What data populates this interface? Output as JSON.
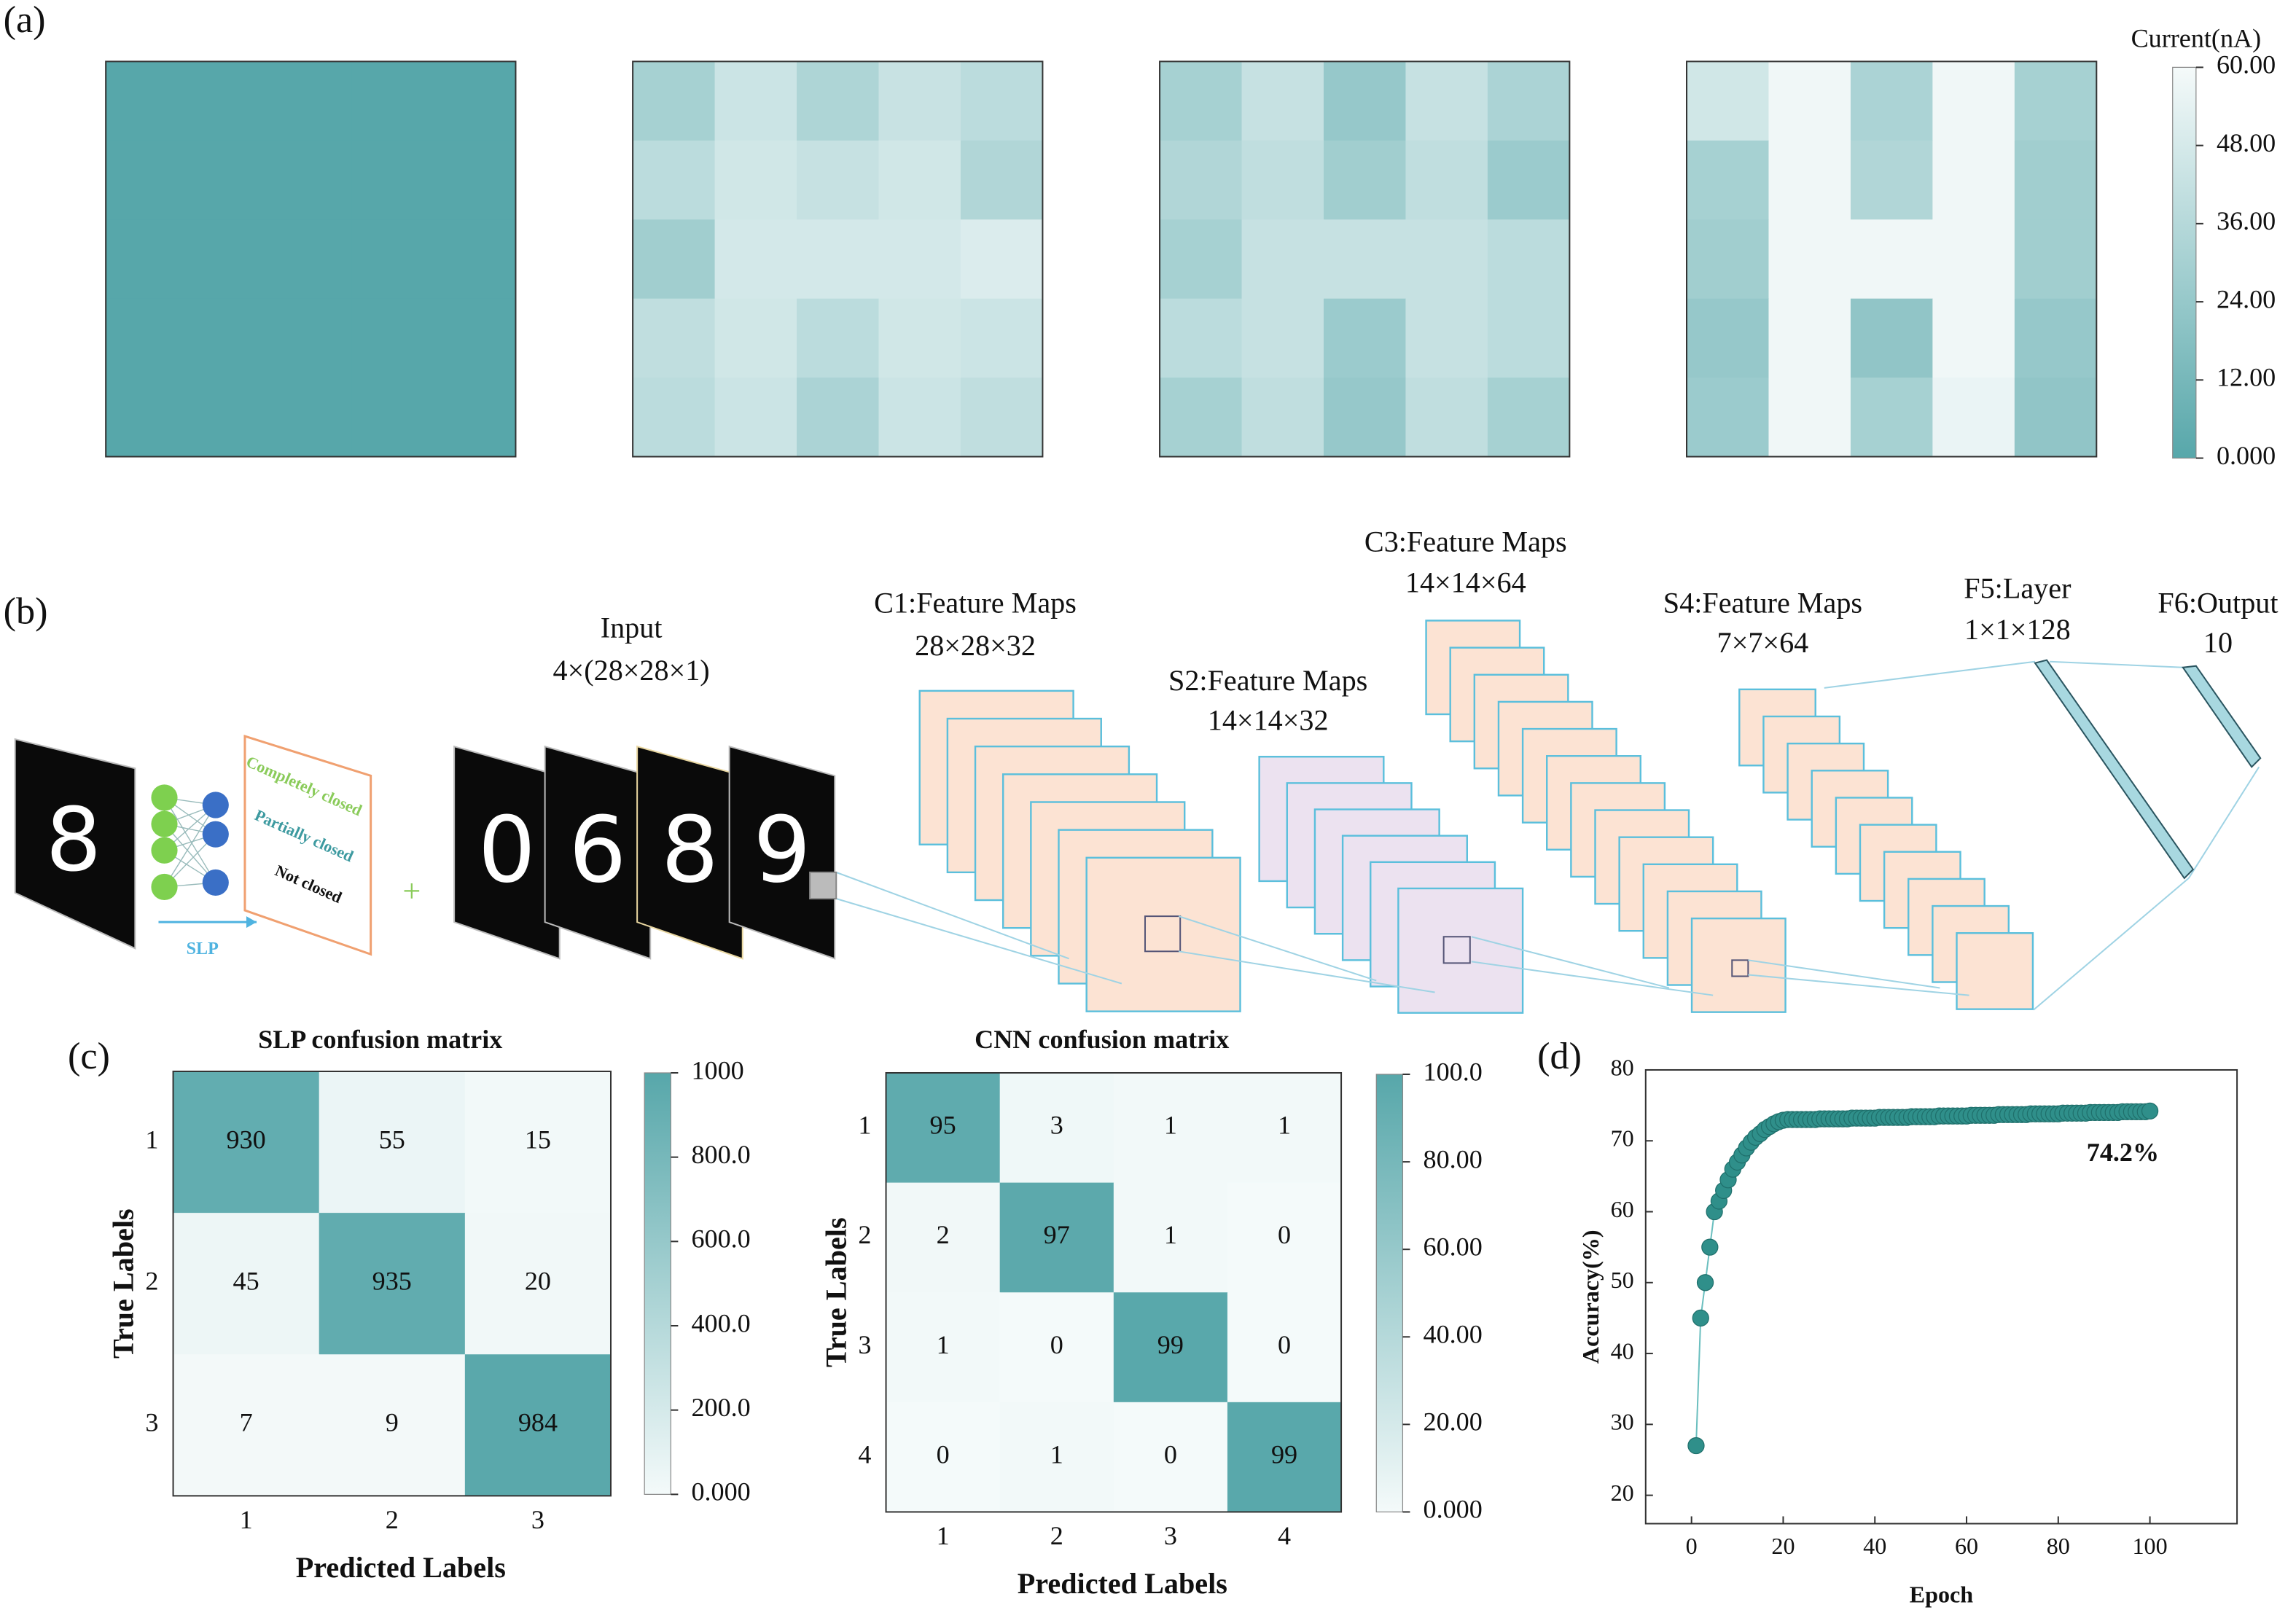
{
  "chart_data": [
    {
      "type": "heatmap",
      "label": "(a)",
      "colorbar_title": "Current(nA)",
      "colormap": [
        "#57a7aa",
        "#f5fafa"
      ],
      "clim": [
        0,
        60
      ],
      "cticks": [
        {
          "value": 0,
          "label": "0.000"
        },
        {
          "value": 12,
          "label": "12.00"
        },
        {
          "value": 24,
          "label": "24.00"
        },
        {
          "value": 36,
          "label": "36.00"
        },
        {
          "value": 48,
          "label": "48.00"
        },
        {
          "value": 60,
          "label": "60.00"
        }
      ],
      "panels": [
        {
          "values": [
            [
              0,
              0,
              0,
              0,
              0
            ],
            [
              0,
              0,
              0,
              0,
              0
            ],
            [
              0,
              0,
              0,
              0,
              0
            ],
            [
              0,
              0,
              0,
              0,
              0
            ],
            [
              0,
              0,
              0,
              0,
              0
            ]
          ]
        },
        {
          "values": [
            [
              30,
              44,
              33,
              43,
              38
            ],
            [
              38,
              46,
              42,
              46,
              34
            ],
            [
              28,
              47,
              47,
              47,
              50
            ],
            [
              40,
              46,
              38,
              46,
              44
            ],
            [
              38,
              44,
              32,
              44,
              40
            ]
          ]
        },
        {
          "values": [
            [
              30,
              42,
              24,
              42,
              32
            ],
            [
              34,
              40,
              28,
              40,
              26
            ],
            [
              30,
              42,
              42,
              42,
              38
            ],
            [
              38,
              42,
              26,
              42,
              38
            ],
            [
              30,
              40,
              24,
              40,
              30
            ]
          ]
        },
        {
          "values": [
            [
              46,
              58,
              32,
              58,
              30
            ],
            [
              30,
              58,
              34,
              58,
              28
            ],
            [
              28,
              58,
              58,
              58,
              28
            ],
            [
              24,
              58,
              22,
              58,
              24
            ],
            [
              26,
              58,
              30,
              56,
              22
            ]
          ]
        }
      ]
    },
    {
      "type": "confusion_matrix",
      "label": "(c)",
      "title": "SLP confusion matrix",
      "xlabel": "Predicted Labels",
      "ylabel": "True Labels",
      "categories": [
        "1",
        "2",
        "3"
      ],
      "values": [
        [
          930,
          55,
          15
        ],
        [
          45,
          935,
          20
        ],
        [
          7,
          9,
          984
        ]
      ],
      "colormap": [
        "#f4fafa",
        "#57a7aa"
      ],
      "clim": [
        0,
        1000
      ],
      "cticks": [
        {
          "value": 0,
          "label": "0.000"
        },
        {
          "value": 200,
          "label": "200.0"
        },
        {
          "value": 400,
          "label": "400.0"
        },
        {
          "value": 600,
          "label": "600.0"
        },
        {
          "value": 800,
          "label": "800.0"
        },
        1000
      ]
    },
    {
      "type": "confusion_matrix",
      "title": "CNN confusion matrix",
      "xlabel": "Predicted Labels",
      "ylabel": "True Labels",
      "categories": [
        "1",
        "2",
        "3",
        "4"
      ],
      "values": [
        [
          95,
          3,
          1,
          1
        ],
        [
          2,
          97,
          1,
          0
        ],
        [
          1,
          0,
          99,
          0
        ],
        [
          0,
          1,
          0,
          99
        ]
      ],
      "colormap": [
        "#f4fafa",
        "#57a7aa"
      ],
      "clim": [
        0,
        100
      ],
      "cticks": [
        {
          "value": 0,
          "label": "0.000"
        },
        {
          "value": 20,
          "label": "20.00"
        },
        {
          "value": 40,
          "label": "40.00"
        },
        {
          "value": 60,
          "label": "60.00"
        },
        {
          "value": 80,
          "label": "80.00"
        },
        {
          "value": 100,
          "label": "100.0"
        }
      ]
    },
    {
      "type": "scatter",
      "label": "(d)",
      "xlabel": "Epoch",
      "ylabel": "Accuracy(%)",
      "annotation": "74.2%",
      "marker_color": "#2f8f8a",
      "line_color": "#6bbfbf",
      "xlim": [
        -10,
        119
      ],
      "ylim": [
        16,
        80
      ],
      "xticks": [
        0,
        20,
        40,
        60,
        80,
        100
      ],
      "yticks": [
        20,
        30,
        40,
        50,
        60,
        70,
        80
      ],
      "x": [
        1,
        2,
        3,
        4,
        5,
        6,
        7,
        8,
        9,
        10,
        11,
        12,
        13,
        14,
        15,
        16,
        17,
        18,
        19,
        20,
        21,
        22,
        23,
        24,
        25,
        26,
        27,
        28,
        29,
        30,
        31,
        32,
        33,
        34,
        35,
        36,
        37,
        38,
        39,
        40,
        41,
        42,
        43,
        44,
        45,
        46,
        47,
        48,
        49,
        50,
        51,
        52,
        53,
        54,
        55,
        56,
        57,
        58,
        59,
        60,
        61,
        62,
        63,
        64,
        65,
        66,
        67,
        68,
        69,
        70,
        71,
        72,
        73,
        74,
        75,
        76,
        77,
        78,
        79,
        80,
        81,
        82,
        83,
        84,
        85,
        86,
        87,
        88,
        89,
        90,
        91,
        92,
        93,
        94,
        95,
        96,
        97,
        98,
        99,
        100
      ],
      "values": [
        27,
        45,
        50,
        55,
        60,
        61.5,
        63,
        64.5,
        66,
        67,
        68,
        69,
        69.8,
        70.5,
        71,
        71.6,
        72,
        72.4,
        72.7,
        72.9,
        73.0,
        73.0,
        73.0,
        73.0,
        73.0,
        73.0,
        73.0,
        73.1,
        73.1,
        73.1,
        73.1,
        73.1,
        73.1,
        73.1,
        73.2,
        73.2,
        73.2,
        73.2,
        73.2,
        73.2,
        73.3,
        73.3,
        73.3,
        73.3,
        73.3,
        73.3,
        73.3,
        73.4,
        73.4,
        73.4,
        73.4,
        73.4,
        73.4,
        73.5,
        73.5,
        73.5,
        73.5,
        73.5,
        73.5,
        73.5,
        73.6,
        73.6,
        73.6,
        73.6,
        73.6,
        73.6,
        73.7,
        73.7,
        73.7,
        73.7,
        73.7,
        73.7,
        73.7,
        73.8,
        73.8,
        73.8,
        73.8,
        73.8,
        73.8,
        73.8,
        73.9,
        73.9,
        73.9,
        73.9,
        73.9,
        73.9,
        74.0,
        74.0,
        74.0,
        74.0,
        74.0,
        74.0,
        74.0,
        74.1,
        74.1,
        74.1,
        74.1,
        74.1,
        74.1,
        74.2
      ]
    }
  ],
  "diagram": {
    "label": "(b)",
    "slp": "SLP",
    "slp_classes": [
      "Completely closed",
      "Partially closed",
      "Not closed"
    ],
    "plus": "+",
    "slp_digit": "8",
    "input_digits": [
      "0",
      "6",
      "8",
      "9"
    ],
    "input": {
      "name": "Input",
      "size": "4×(28×28×1)"
    },
    "c1": {
      "name": "C1:Feature Maps",
      "size": "28×28×32"
    },
    "s2": {
      "name": "S2:Feature Maps",
      "size": "14×14×32"
    },
    "c3": {
      "name": "C3:Feature Maps",
      "size": "14×14×64"
    },
    "s4": {
      "name": "S4:Feature Maps",
      "size": "7×7×64"
    },
    "f5": {
      "name": "F5:Layer",
      "size": "1×1×128"
    },
    "f6": {
      "name": "F6:Output",
      "size": "10"
    }
  }
}
